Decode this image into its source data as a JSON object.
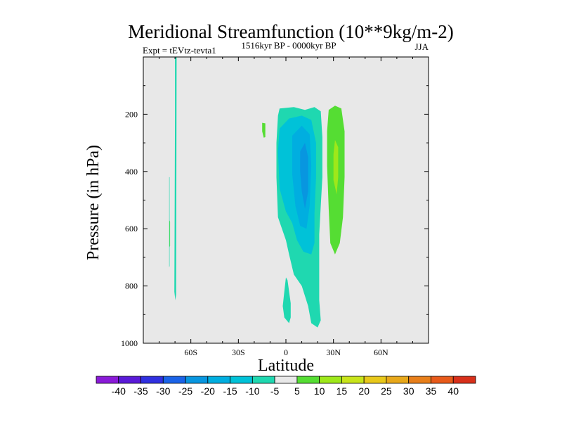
{
  "chart_data": {
    "type": "contour",
    "title": "Meridional Streamfunction (10**9kg/m-2)",
    "subtitle_left": "Expt = tEVtz-tevta1",
    "subtitle_center": "1516kyr BP - 0000kyr BP",
    "subtitle_right": "JJA",
    "xlabel": "Latitude",
    "ylabel": "Pressure (in hPa)",
    "x_range": [
      -90,
      90
    ],
    "y_range": [
      0,
      1000
    ],
    "y_inverted": true,
    "x_ticks": [
      {
        "value": -60,
        "label": "60S"
      },
      {
        "value": -30,
        "label": "30S"
      },
      {
        "value": 0,
        "label": "0"
      },
      {
        "value": 30,
        "label": "30N"
      },
      {
        "value": 60,
        "label": "60N"
      }
    ],
    "y_ticks": [
      {
        "value": 200,
        "label": "200"
      },
      {
        "value": 400,
        "label": "400"
      },
      {
        "value": 600,
        "label": "600"
      },
      {
        "value": 800,
        "label": "800"
      },
      {
        "value": 1000,
        "label": "1000"
      }
    ],
    "background_color": "#e8e8e8",
    "regions": [
      {
        "name": "neg-cell-outer",
        "level": -5,
        "color": "#1fd8b0",
        "points": [
          [
            -5,
            205
          ],
          [
            -4,
            180
          ],
          [
            5,
            175
          ],
          [
            12,
            185
          ],
          [
            18,
            175
          ],
          [
            22,
            190
          ],
          [
            23,
            280
          ],
          [
            23,
            420
          ],
          [
            22,
            520
          ],
          [
            21,
            620
          ],
          [
            21,
            760
          ],
          [
            21,
            850
          ],
          [
            22,
            920
          ],
          [
            20,
            945
          ],
          [
            16,
            930
          ],
          [
            14,
            870
          ],
          [
            10,
            800
          ],
          [
            5,
            760
          ],
          [
            2,
            690
          ],
          [
            0,
            640
          ],
          [
            -5,
            560
          ],
          [
            -6,
            420
          ],
          [
            -6,
            300
          ]
        ]
      },
      {
        "name": "neg-cell-foot",
        "level": -5,
        "color": "#1fd8b0",
        "points": [
          [
            0,
            770
          ],
          [
            1,
            780
          ],
          [
            3,
            860
          ],
          [
            3,
            910
          ],
          [
            2,
            930
          ],
          [
            -1,
            910
          ],
          [
            -2,
            870
          ],
          [
            -1,
            820
          ]
        ]
      },
      {
        "name": "neg-cell-minus10",
        "level": -10,
        "color": "#00c2d8",
        "points": [
          [
            -4,
            250
          ],
          [
            2,
            215
          ],
          [
            10,
            205
          ],
          [
            16,
            220
          ],
          [
            19,
            300
          ],
          [
            19,
            420
          ],
          [
            18,
            550
          ],
          [
            18,
            650
          ],
          [
            16,
            690
          ],
          [
            11,
            680
          ],
          [
            7,
            640
          ],
          [
            4,
            580
          ],
          [
            0,
            540
          ],
          [
            -4,
            460
          ],
          [
            -5,
            330
          ]
        ]
      },
      {
        "name": "neg-cell-minus15",
        "level": -15,
        "color": "#00aee0",
        "points": [
          [
            4,
            275
          ],
          [
            10,
            240
          ],
          [
            15,
            270
          ],
          [
            16,
            380
          ],
          [
            15,
            520
          ],
          [
            13,
            600
          ],
          [
            9,
            590
          ],
          [
            6,
            520
          ],
          [
            4,
            410
          ]
        ]
      },
      {
        "name": "neg-cell-minus20",
        "level": -20,
        "color": "#0896e0",
        "points": [
          [
            9,
            330
          ],
          [
            12,
            300
          ],
          [
            14,
            350
          ],
          [
            14,
            470
          ],
          [
            12,
            530
          ],
          [
            10,
            470
          ],
          [
            9,
            400
          ]
        ]
      },
      {
        "name": "pos-cell-outer",
        "level": 5,
        "color": "#55dd33",
        "points": [
          [
            27,
            185
          ],
          [
            31,
            170
          ],
          [
            35,
            180
          ],
          [
            37,
            260
          ],
          [
            37,
            420
          ],
          [
            36,
            560
          ],
          [
            34,
            650
          ],
          [
            31,
            690
          ],
          [
            28,
            650
          ],
          [
            27,
            530
          ],
          [
            26,
            380
          ],
          [
            26,
            260
          ]
        ]
      },
      {
        "name": "pos-cell-core",
        "level": 10,
        "color": "#9ee81a",
        "points": [
          [
            31,
            290
          ],
          [
            33,
            315
          ],
          [
            33,
            420
          ],
          [
            32,
            480
          ],
          [
            30,
            430
          ],
          [
            30,
            340
          ]
        ]
      },
      {
        "name": "pos-speck-15s",
        "level": 5,
        "color": "#55dd33",
        "points": [
          [
            -15,
            230
          ],
          [
            -13,
            232
          ],
          [
            -13,
            280
          ],
          [
            -14,
            282
          ],
          [
            -15,
            260
          ]
        ]
      },
      {
        "name": "neg-stripe-70s",
        "level": -5,
        "color": "#1fd8b0",
        "points": [
          [
            -70,
            0
          ],
          [
            -69,
            0
          ],
          [
            -69.3,
            830
          ],
          [
            -69.8,
            850
          ],
          [
            -70.4,
            820
          ],
          [
            -70.2,
            500
          ],
          [
            -70,
            200
          ]
        ]
      },
      {
        "name": "pos-stripe-73s",
        "level": 5,
        "color": "#55dd33",
        "points": [
          [
            -73.6,
            570
          ],
          [
            -73.1,
            575
          ],
          [
            -73.1,
            660
          ],
          [
            -73.5,
            665
          ]
        ]
      },
      {
        "name": "neg-stripe-73s-thin",
        "level": -5,
        "color": "#1fd8b0",
        "points": [
          [
            -73.7,
            420
          ],
          [
            -73.4,
            420
          ],
          [
            -73.4,
            730
          ],
          [
            -73.7,
            735
          ]
        ]
      }
    ],
    "colorbar": {
      "levels": [
        -40,
        -35,
        -30,
        -25,
        -20,
        -15,
        -10,
        -5,
        5,
        10,
        15,
        20,
        25,
        30,
        35,
        40
      ],
      "colors": [
        "#8a1ad8",
        "#5a1ad8",
        "#3030e0",
        "#1a63e8",
        "#0896e0",
        "#00aee0",
        "#00c2d8",
        "#1fd8b0",
        "#e8e8e8",
        "#55dd33",
        "#9ee81a",
        "#c8e41a",
        "#e8c81a",
        "#e8a81a",
        "#e87f1a",
        "#e85a1a",
        "#d8301a"
      ]
    }
  }
}
